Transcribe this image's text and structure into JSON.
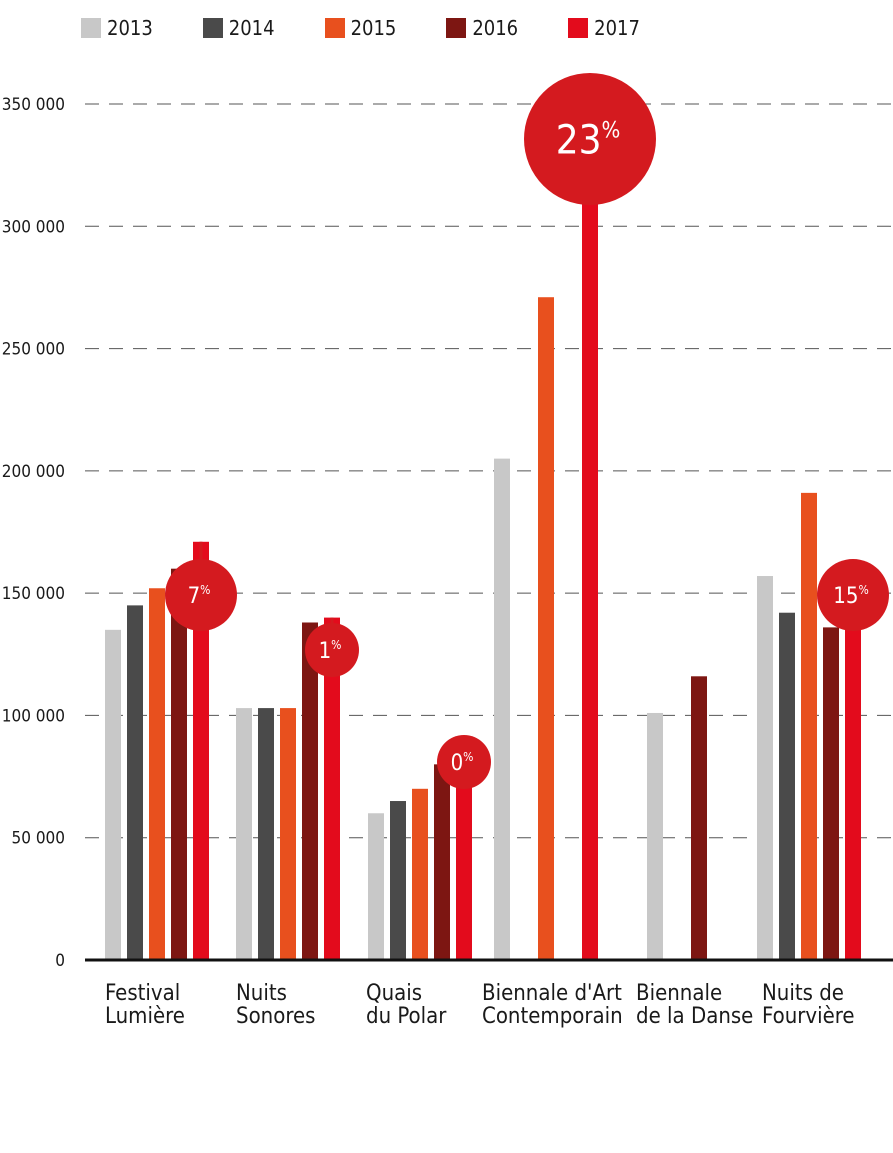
{
  "chart_data": {
    "type": "bar",
    "categories": [
      [
        "Festival",
        "Lumière"
      ],
      [
        "Nuits",
        "Sonores"
      ],
      [
        "Quais",
        "du Polar"
      ],
      [
        "Biennale d'Art",
        "Contemporain"
      ],
      [
        "Biennale",
        "de la Danse"
      ],
      [
        "Nuits de",
        "Fourvière"
      ]
    ],
    "series": [
      {
        "name": "2013",
        "color": "#c8c8c8",
        "values": [
          135000,
          103000,
          60000,
          205000,
          101000,
          157000
        ]
      },
      {
        "name": "2014",
        "color": "#4a4a4a",
        "values": [
          145000,
          103000,
          65000,
          null,
          null,
          142000
        ]
      },
      {
        "name": "2015",
        "color": "#e8501e",
        "values": [
          152000,
          103000,
          70000,
          271000,
          null,
          191000
        ]
      },
      {
        "name": "2016",
        "color": "#7d1612",
        "values": [
          160000,
          138000,
          80000,
          null,
          116000,
          136000
        ]
      },
      {
        "name": "2017",
        "color": "#e30b1c",
        "values": [
          171000,
          140000,
          80000,
          333000,
          null,
          156000
        ]
      }
    ],
    "annotations": [
      {
        "category_index": 0,
        "value": "7",
        "unit": "%"
      },
      {
        "category_index": 1,
        "value": "1",
        "unit": "%"
      },
      {
        "category_index": 2,
        "value": "0",
        "unit": "%"
      },
      {
        "category_index": 3,
        "value": "23",
        "unit": "%"
      },
      {
        "category_index": 5,
        "value": "15",
        "unit": "%"
      }
    ],
    "yticks": [
      {
        "value": 0,
        "label": "0"
      },
      {
        "value": 50000,
        "label": "50 000"
      },
      {
        "value": 100000,
        "label": "100 000"
      },
      {
        "value": 150000,
        "label": "150 000"
      },
      {
        "value": 200000,
        "label": "200 000"
      },
      {
        "value": 250000,
        "label": "250 000"
      },
      {
        "value": 300000,
        "label": "300 000"
      },
      {
        "value": 350000,
        "label": "350 000"
      }
    ],
    "ylim": [
      0,
      350000
    ],
    "grid": true,
    "legend_position": "top-left",
    "annotation_color": "#d41a1f"
  }
}
